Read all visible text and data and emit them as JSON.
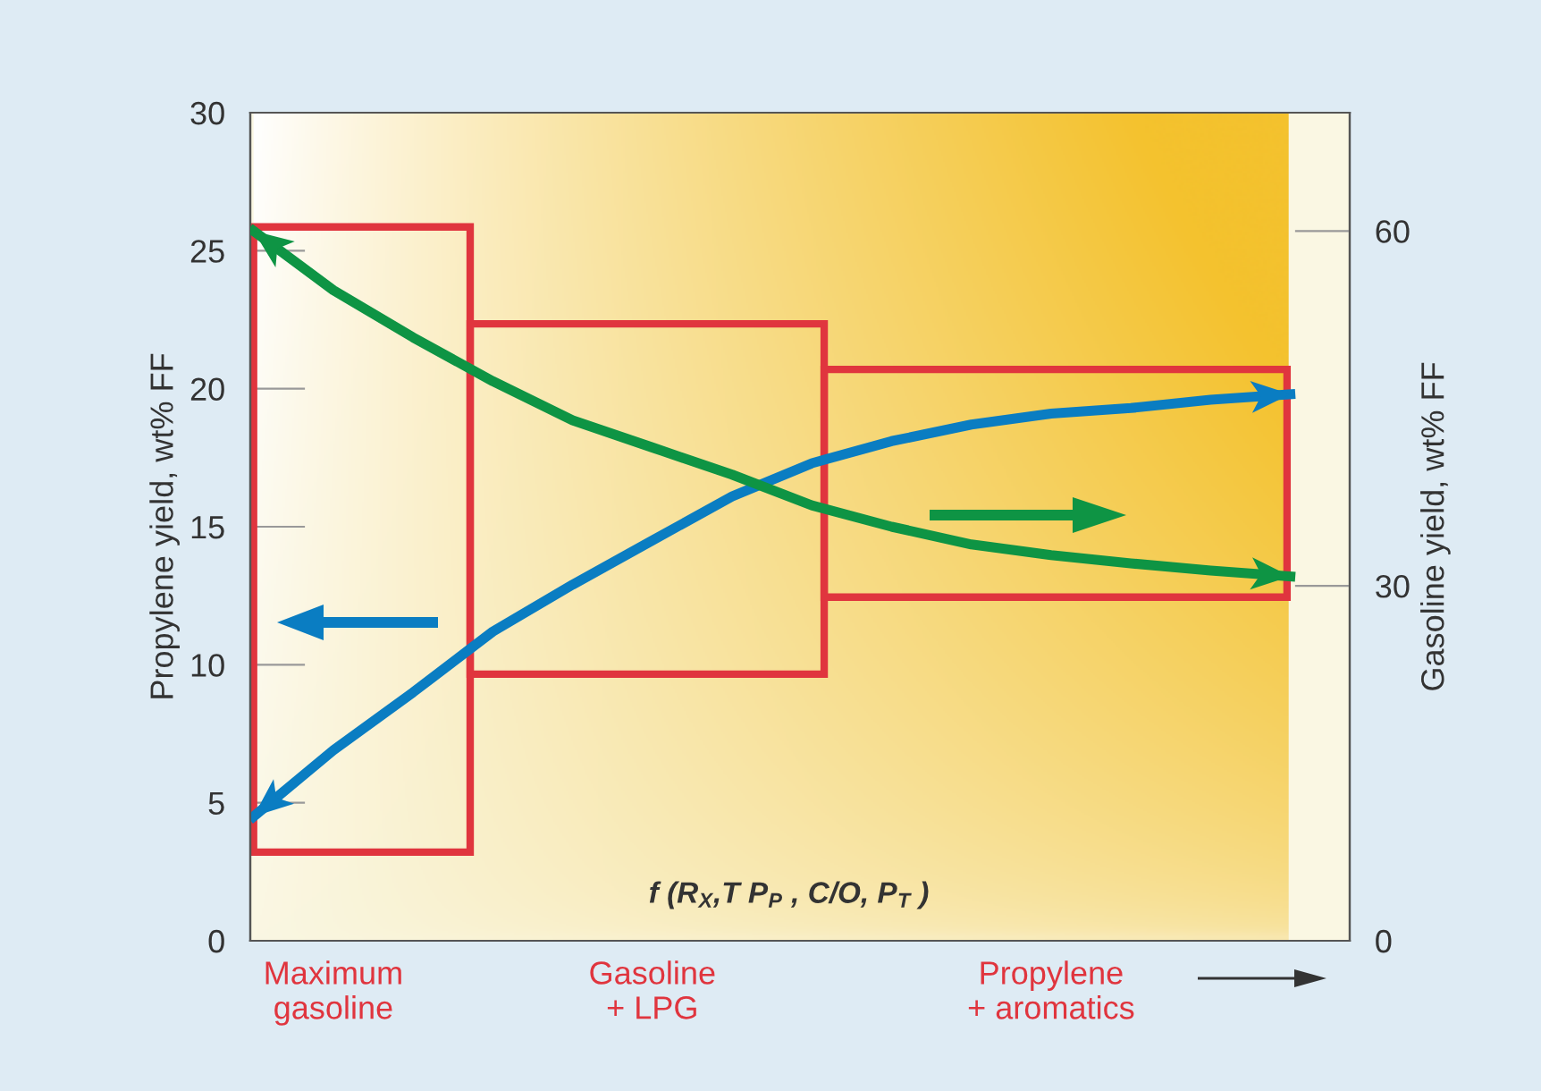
{
  "chart_data": {
    "type": "line",
    "ylabel": "Propylene yield, wt% FF",
    "y2label": "Gasoline yield, wt% FF",
    "categories": [
      null,
      "Maximum\ngasoline",
      null,
      null,
      null,
      "Gasoline\n+ LPG",
      null,
      null,
      null,
      null,
      "Propylene\n+ aromatics",
      null,
      null,
      null
    ],
    "ylim": [
      0,
      30
    ],
    "yticks": [
      0,
      5,
      10,
      15,
      20,
      25,
      30
    ],
    "y2lim": [
      0,
      70
    ],
    "y2ticks": [
      0,
      30,
      60
    ],
    "grid": false,
    "marker": "none",
    "line_style": "solid",
    "annotations": [
      "f (R$_{X}$,T P$_{P}$ , C/O, P$_{T}$ )"
    ],
    "series": [
      {
        "color": "#0a7dc2",
        "axis": "y",
        "values": [
          4.5,
          6.9,
          9.0,
          11.2,
          12.9,
          14.5,
          16.1,
          17.3,
          18.1,
          18.7,
          19.1,
          19.3,
          19.6,
          19.8
        ]
      },
      {
        "color": "#0e9444",
        "axis": "y2",
        "values": [
          60,
          55.0,
          51.0,
          47.3,
          44.0,
          41.7,
          39.4,
          36.8,
          35.0,
          33.5,
          32.6,
          31.9,
          31.3,
          30.8
        ]
      }
    ]
  }
}
